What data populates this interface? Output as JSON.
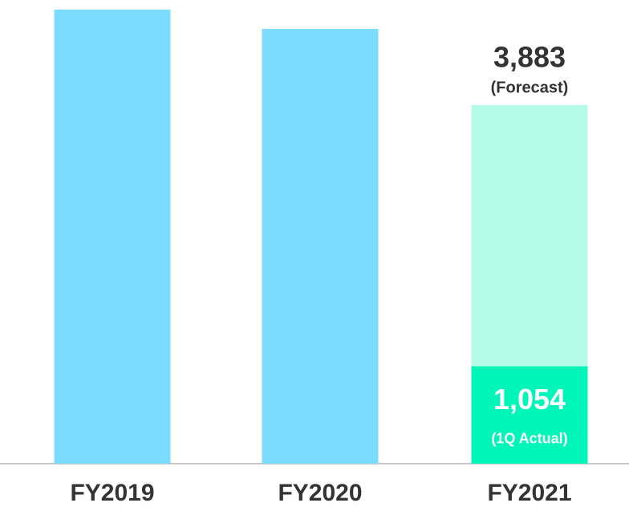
{
  "chart_data": {
    "type": "bar",
    "categories": [
      "FY2019",
      "FY2020",
      "FY2021"
    ],
    "series": [
      {
        "values": [
          4917,
          4708,
          3883
        ],
        "colors": [
          "#7bdcfd",
          "#7bdcfd",
          "#b3fbe6"
        ],
        "value_labels": [
          null,
          null,
          "3,883"
        ],
        "value_notes": [
          null,
          null,
          "(Forecast)"
        ]
      },
      {
        "values": [
          null,
          null,
          1054
        ],
        "color": "#00f5b9",
        "value_labels": [
          null,
          null,
          "1,054"
        ],
        "value_notes": [
          null,
          null,
          "(1Q Actual)"
        ]
      }
    ],
    "ylim": [
      0,
      5000
    ]
  }
}
